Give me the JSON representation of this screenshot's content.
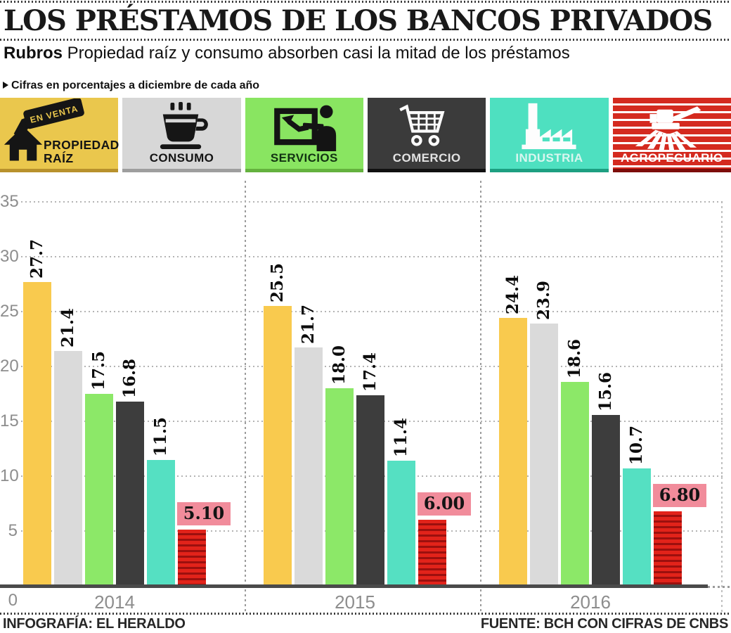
{
  "header": {
    "title": "LOS PRÉSTAMOS DE LOS BANCOS PRIVADOS",
    "subtitle_bold": "Rubros",
    "subtitle_rest": " Propiedad raíz y consumo absorben casi la mitad de los préstamos",
    "note": "Cifras en porcentajes a diciembre de cada año"
  },
  "legend": {
    "sign_text": "EN VENTA",
    "items": [
      {
        "label": "PROPIEDAD RAÍZ",
        "label_lines": [
          "PROPIEDAD",
          "RAÍZ"
        ],
        "color": "#eac74d",
        "border": "#b8912c",
        "text_color": "#141414",
        "icon": "house-for-sale"
      },
      {
        "label": "CONSUMO",
        "color": "#d7d7d7",
        "border": "#9e9e9e",
        "text_color": "#141414",
        "icon": "coffee-cup"
      },
      {
        "label": "SERVICIOS",
        "color": "#89e561",
        "border": "#64b23e",
        "text_color": "#123312",
        "icon": "services-person-board"
      },
      {
        "label": "COMERCIO",
        "color": "#3b3b3b",
        "border": "#101010",
        "text_color": "#e3e3e3",
        "icon": "shopping-cart"
      },
      {
        "label": "INDUSTRIA",
        "color": "#4ee0c0",
        "border": "#1d9f81",
        "text_color": "#d9f6ef",
        "icon": "factory"
      },
      {
        "label": "AGROPECUARIO",
        "color": "#d42a1f",
        "border": "#7d0d0a",
        "text_color": "#ffffff",
        "icon": "combine-harvester",
        "striped": true
      }
    ]
  },
  "chart_data": {
    "type": "bar",
    "title": "LOS PRÉSTAMOS DE LOS BANCOS PRIVADOS",
    "subtitle": "Propiedad raíz y consumo absorben casi la mitad de los préstamos",
    "unit": "percent",
    "xlabel": "",
    "ylabel": "Cifras en porcentajes a diciembre de cada año",
    "categories": [
      "2014",
      "2015",
      "2016"
    ],
    "series": [
      {
        "name": "Propiedad raíz",
        "slug": "propiedad-raiz",
        "color": "#f9ca4e",
        "values": [
          27.7,
          25.5,
          24.4
        ],
        "labels": [
          "27.7",
          "25.5",
          "24.4"
        ]
      },
      {
        "name": "Consumo",
        "slug": "consumo",
        "color": "#dadada",
        "values": [
          21.4,
          21.7,
          23.9
        ],
        "labels": [
          "21.4",
          "21.7",
          "23.9"
        ]
      },
      {
        "name": "Servicios",
        "slug": "servicios",
        "color": "#8ce868",
        "values": [
          17.5,
          18.0,
          18.6
        ],
        "labels": [
          "17.5",
          "18.0",
          "18.6"
        ]
      },
      {
        "name": "Comercio",
        "slug": "comercio",
        "color": "#3d3d3d",
        "values": [
          16.8,
          17.4,
          15.6
        ],
        "labels": [
          "16.8",
          "17.4",
          "15.6"
        ]
      },
      {
        "name": "Industria",
        "slug": "industria",
        "color": "#55e0c2",
        "values": [
          11.5,
          11.4,
          10.7
        ],
        "labels": [
          "11.5",
          "11.4",
          "10.7"
        ]
      },
      {
        "name": "Agropecuario",
        "slug": "agropecuario",
        "color": "#e2231a",
        "stripe_color": "#9c100e",
        "striped": true,
        "label_bg": "#f18c9b",
        "values": [
          5.1,
          6.0,
          6.8
        ],
        "labels": [
          "5.10",
          "6.00",
          "6.80"
        ]
      }
    ],
    "ylim": [
      0,
      35
    ],
    "yticks": [
      35,
      30,
      25,
      20,
      15,
      10,
      5,
      0
    ],
    "grid": "dotted-horizontal-gridlines",
    "legend_position": "top",
    "value_label_style": "rotated-vertical; agropecuario values in pink boxes"
  },
  "footer": {
    "left": "INFOGRAFÍA: EL HERALDO",
    "right": "FUENTE: BCH CON CIFRAS DE CNBS"
  }
}
